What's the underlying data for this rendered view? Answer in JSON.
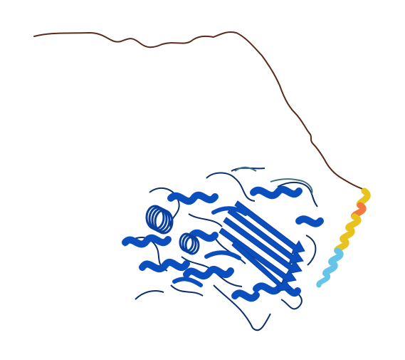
{
  "structure": {
    "palette": {
      "very_high": "#0b4fbf",
      "very_high_dark": "#0a3f9c",
      "confident": "#0d2f6b",
      "medium": "#66c4e8",
      "low": "#e8c31e",
      "very_low": "#f07a3c",
      "disordered_tail": "#5a2a1a",
      "background": "#ffffff"
    }
  }
}
